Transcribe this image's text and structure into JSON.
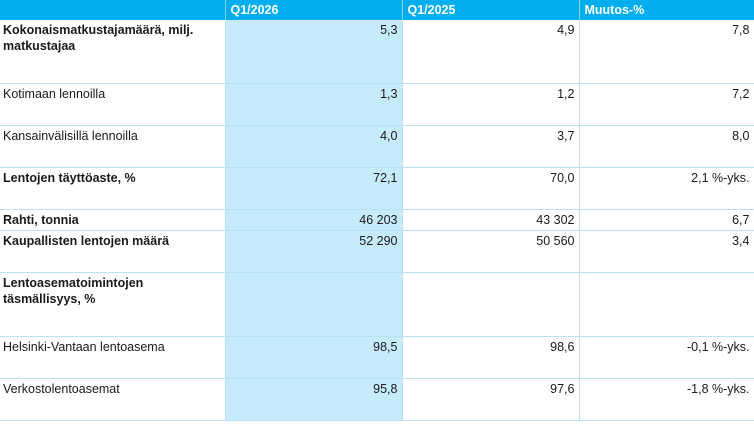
{
  "table": {
    "headers": [
      "",
      "Q1/2026",
      "Q1/2025",
      "Muutos-%"
    ],
    "rows": [
      {
        "label": "Kokonaismatkustajamäärä, milj. matkustajaa",
        "bold": true,
        "q1_2026": "5,3",
        "q1_2025": "4,9",
        "change": "7,8"
      },
      {
        "label": "Kotimaan lennoilla",
        "bold": false,
        "q1_2026": "1,3",
        "q1_2025": "1,2",
        "change": "7,2"
      },
      {
        "label": "Kansainvälisillä lennoilla",
        "bold": false,
        "q1_2026": "4,0",
        "q1_2025": "3,7",
        "change": "8,0"
      },
      {
        "label": "Lentojen täyttöaste, %",
        "bold": true,
        "q1_2026": "72,1",
        "q1_2025": "70,0",
        "change": "2,1 %-yks."
      },
      {
        "label": "Rahti, tonnia",
        "bold": true,
        "q1_2026": "46 203",
        "q1_2025": "43 302",
        "change": "6,7"
      },
      {
        "label": "Kaupallisten lentojen määrä",
        "bold": true,
        "q1_2026": "52 290",
        "q1_2025": "50 560",
        "change": "3,4"
      },
      {
        "label": "Lentoasematoimintojen täsmällisyys, %",
        "bold": true,
        "q1_2026": "",
        "q1_2025": "",
        "change": ""
      },
      {
        "label": "Helsinki-Vantaan lentoasema",
        "bold": false,
        "q1_2026": "98,5",
        "q1_2025": "98,6",
        "change": "-0,1 %-yks."
      },
      {
        "label": "Verkostolentoasemat",
        "bold": false,
        "q1_2026": "95,8",
        "q1_2025": "97,6",
        "change": "-1,8 %-yks."
      }
    ]
  }
}
